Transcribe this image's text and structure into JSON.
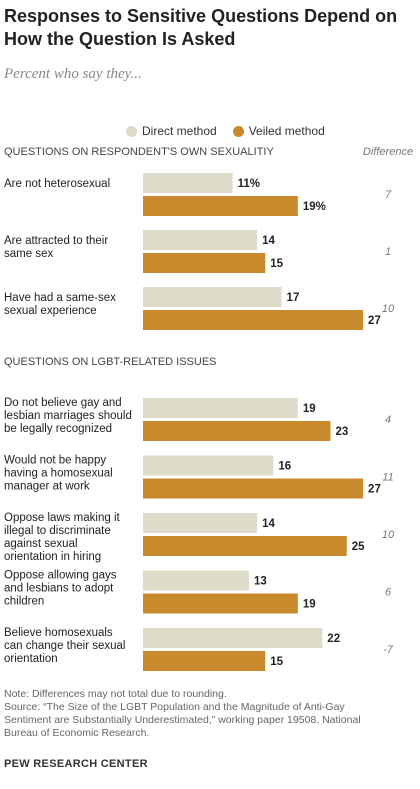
{
  "title": "Responses to Sensitive Questions Depend on How the Question Is Asked",
  "subtitle": "Percent who say they...",
  "legend": {
    "direct": "Direct method",
    "veiled": "Veiled method"
  },
  "difference_header": "Difference",
  "colors": {
    "direct": "#dedbc8",
    "veiled": "#c98a2e",
    "section_text": "#444444",
    "difference_text": "#777777"
  },
  "chart_data": {
    "type": "bar",
    "orientation": "horizontal",
    "xlim": [
      0,
      30
    ],
    "series": [
      {
        "name": "Direct method"
      },
      {
        "name": "Veiled method"
      }
    ],
    "groups": [
      {
        "section": "QUESTIONS ON RESPONDENT'S OWN SEXUALITIY",
        "items": [
          {
            "label": [
              "Are not heterosexual"
            ],
            "direct": 11,
            "veiled": 19,
            "direct_label": "11%",
            "veiled_label": "19%",
            "difference": "7"
          },
          {
            "label": [
              "Are attracted to their",
              "same sex"
            ],
            "direct": 14,
            "veiled": 15,
            "direct_label": "14",
            "veiled_label": "15",
            "difference": "1"
          },
          {
            "label": [
              "Have had a same-sex",
              "sexual experience"
            ],
            "direct": 17,
            "veiled": 27,
            "direct_label": "17",
            "veiled_label": "27",
            "difference": "10"
          }
        ]
      },
      {
        "section": "QUESTIONS ON LGBT-RELATED ISSUES",
        "items": [
          {
            "label": [
              "Do not believe gay and",
              "lesbian marriages should",
              "be legally recognized"
            ],
            "direct": 19,
            "veiled": 23,
            "direct_label": "19",
            "veiled_label": "23",
            "difference": "4"
          },
          {
            "label": [
              "Would not be happy",
              "having a homosexual",
              "manager at work"
            ],
            "direct": 16,
            "veiled": 27,
            "direct_label": "16",
            "veiled_label": "27",
            "difference": "11"
          },
          {
            "label": [
              "Oppose laws making it",
              "illegal to discriminate",
              "against sexual",
              "orientation in hiring"
            ],
            "direct": 14,
            "veiled": 25,
            "direct_label": "14",
            "veiled_label": "25",
            "difference": "10"
          },
          {
            "label": [
              "Oppose allowing gays",
              "and lesbians to adopt",
              "children"
            ],
            "direct": 13,
            "veiled": 19,
            "direct_label": "13",
            "veiled_label": "19",
            "difference": "6"
          },
          {
            "label": [
              "Believe homosexuals",
              "can change their sexual",
              "orientation"
            ],
            "direct": 22,
            "veiled": 15,
            "direct_label": "22",
            "veiled_label": "15",
            "difference": "-7"
          }
        ]
      }
    ]
  },
  "notes": [
    "Note: Differences may not total due to rounding.",
    "Source: “The Size of the LGBT Population and the Magnitude of Anti-Gay",
    "Sentiment are Substantially Underestimated,” working paper 19508. National",
    "Bureau of Economic Research."
  ],
  "source_org": "PEW RESEARCH CENTER"
}
